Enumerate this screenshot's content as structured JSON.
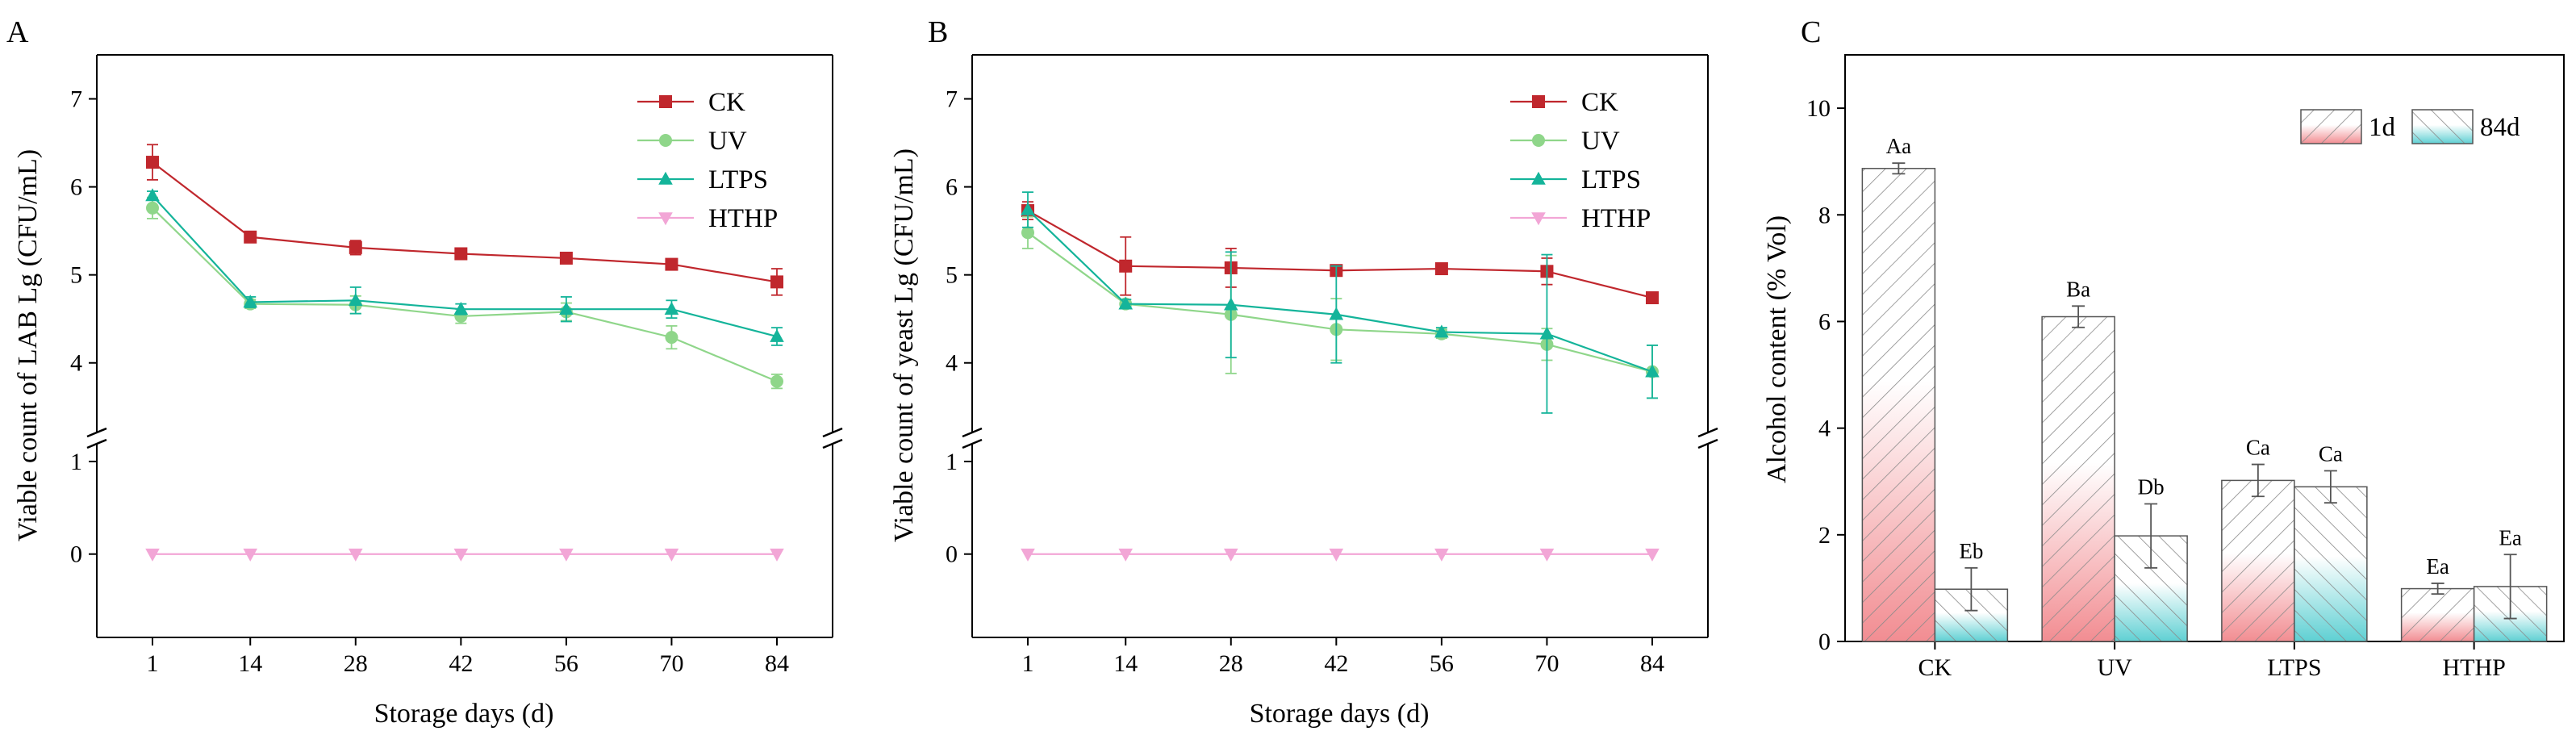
{
  "colors": {
    "CK": "#c0272d",
    "UV": "#8fd68a",
    "LTPS": "#14b49a",
    "HTHP": "#f2a6d6",
    "bar_1d": "#f28d92",
    "bar_84d": "#5fd0d3",
    "error": "#777777"
  },
  "chart_data": [
    {
      "panel": "A",
      "type": "line",
      "ylabel": "Viable count of LAB Lg (CFU/mL)",
      "xlabel": "Storage days (d)",
      "x": [
        1,
        14,
        28,
        42,
        56,
        70,
        84
      ],
      "x_tick_labels": [
        "1",
        "14",
        "28",
        "42",
        "56",
        "70",
        "84"
      ],
      "y_tick_labels_upper": [
        "4",
        "5",
        "6",
        "7"
      ],
      "y_tick_labels_lower": [
        "0",
        "1"
      ],
      "ylim_upper": [
        3.2,
        7.5
      ],
      "ylim_lower": [
        -0.9,
        1.2
      ],
      "axis_break": true,
      "legend": [
        "CK",
        "UV",
        "LTPS",
        "HTHP"
      ],
      "series": [
        {
          "name": "CK",
          "marker": "square",
          "values": [
            6.28,
            5.43,
            5.31,
            5.24,
            5.19,
            5.12,
            4.92
          ],
          "errors": [
            0.2,
            0.04,
            0.08,
            0.03,
            0.03,
            0.03,
            0.15
          ]
        },
        {
          "name": "UV",
          "marker": "circle",
          "values": [
            5.76,
            4.67,
            4.66,
            4.53,
            4.58,
            4.29,
            3.79
          ],
          "errors": [
            0.12,
            0.05,
            0.1,
            0.08,
            0.1,
            0.13,
            0.08
          ]
        },
        {
          "name": "LTPS",
          "marker": "triangle-up",
          "values": [
            5.9,
            4.69,
            4.71,
            4.61,
            4.61,
            4.61,
            4.3
          ],
          "errors": [
            0.05,
            0.06,
            0.15,
            0.06,
            0.14,
            0.1,
            0.1
          ]
        },
        {
          "name": "HTHP",
          "marker": "triangle-down",
          "values": [
            0,
            0,
            0,
            0,
            0,
            0,
            0
          ],
          "errors": [
            0,
            0,
            0,
            0,
            0,
            0,
            0
          ]
        }
      ]
    },
    {
      "panel": "B",
      "type": "line",
      "ylabel": "Viable count of yeast Lg (CFU/mL)",
      "xlabel": "Storage days (d)",
      "x": [
        1,
        14,
        28,
        42,
        56,
        70,
        84
      ],
      "x_tick_labels": [
        "1",
        "14",
        "28",
        "42",
        "56",
        "70",
        "84"
      ],
      "y_tick_labels_upper": [
        "4",
        "5",
        "6",
        "7"
      ],
      "y_tick_labels_lower": [
        "0",
        "1"
      ],
      "ylim_upper": [
        3.2,
        7.5
      ],
      "ylim_lower": [
        -0.9,
        1.2
      ],
      "axis_break": true,
      "legend": [
        "CK",
        "UV",
        "LTPS",
        "HTHP"
      ],
      "series": [
        {
          "name": "CK",
          "marker": "square",
          "values": [
            5.73,
            5.1,
            5.08,
            5.05,
            5.07,
            5.04,
            4.74
          ],
          "errors": [
            0.1,
            0.33,
            0.22,
            0.05,
            0.03,
            0.15,
            0.03
          ]
        },
        {
          "name": "UV",
          "marker": "circle",
          "values": [
            5.48,
            4.67,
            4.55,
            4.38,
            4.33,
            4.21,
            3.9
          ],
          "errors": [
            0.18,
            0.05,
            0.67,
            0.35,
            0.05,
            0.18,
            0.3
          ]
        },
        {
          "name": "LTPS",
          "marker": "triangle-up",
          "values": [
            5.74,
            4.67,
            4.66,
            4.55,
            4.35,
            4.33,
            3.9
          ],
          "errors": [
            0.2,
            0.05,
            0.6,
            0.55,
            0.05,
            0.9,
            0.3
          ]
        },
        {
          "name": "HTHP",
          "marker": "triangle-down",
          "values": [
            0,
            0,
            0,
            0,
            0,
            0,
            0
          ],
          "errors": [
            0,
            0,
            0,
            0,
            0,
            0,
            0
          ]
        }
      ]
    },
    {
      "panel": "C",
      "type": "bar",
      "ylabel": "Alcohol content (% Vol)",
      "xlabel": "",
      "categories": [
        "CK",
        "UV",
        "LTPS",
        "HTHP"
      ],
      "y_tick_labels": [
        "0",
        "2",
        "4",
        "6",
        "8",
        "10"
      ],
      "ylim": [
        0,
        11
      ],
      "legend": [
        "1d",
        "84d"
      ],
      "series": [
        {
          "name": "1d",
          "values": [
            8.87,
            6.09,
            3.02,
            0.99
          ],
          "errors": [
            0.1,
            0.2,
            0.3,
            0.1
          ],
          "labels": [
            "Aa",
            "Ba",
            "Ca",
            "Ea"
          ]
        },
        {
          "name": "84d",
          "values": [
            0.98,
            1.98,
            2.9,
            1.03
          ],
          "errors": [
            0.4,
            0.6,
            0.3,
            0.6
          ],
          "labels": [
            "Eb",
            "Db",
            "Ca",
            "Ea"
          ]
        }
      ]
    }
  ]
}
